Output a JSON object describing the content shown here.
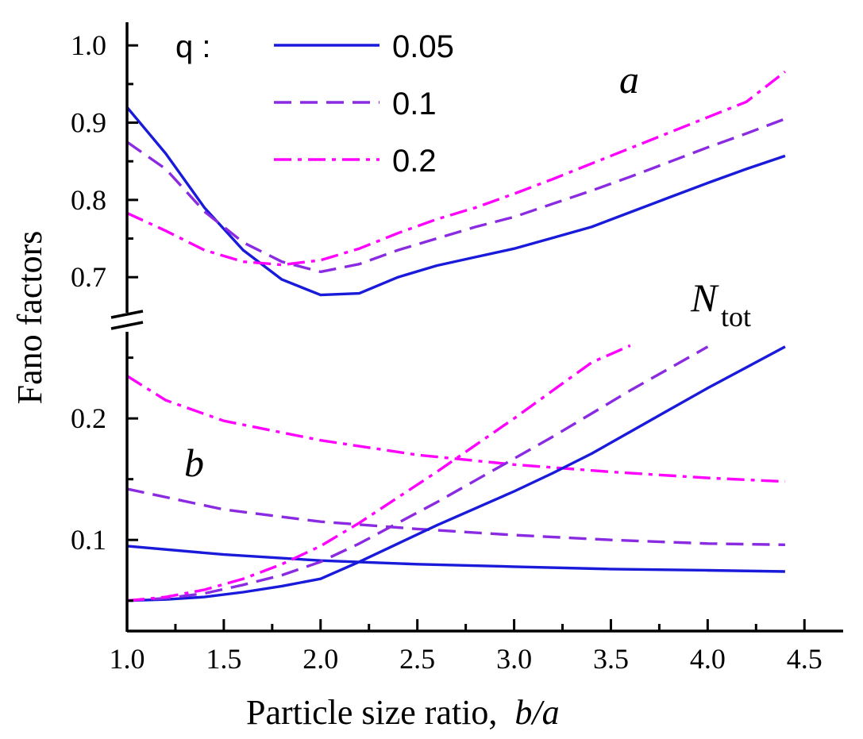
{
  "chart_data": {
    "type": "line",
    "xlabel": "Particle size ratio,",
    "xlabel_italic": "b/a",
    "ylabel": "Fano factors",
    "xlim": [
      1.0,
      4.7
    ],
    "x_ticks": [
      "1.0",
      "1.5",
      "2.0",
      "2.5",
      "3.0",
      "3.5",
      "4.0",
      "4.5"
    ],
    "upper_axis": {
      "ylim": [
        0.655,
        1.03
      ],
      "ticks": [
        "0.7",
        "0.8",
        "0.9",
        "1.0"
      ]
    },
    "lower_axis": {
      "ylim": [
        0.025,
        0.27
      ],
      "ticks": [
        "0.1",
        "0.2"
      ]
    },
    "y_axis_break": true,
    "legend": {
      "position": "top-left",
      "title": "q :",
      "entries": [
        {
          "label": "0.05",
          "style": "solid",
          "color": "#1a1adb"
        },
        {
          "label": "0.1",
          "style": "dashed",
          "color": "#8a2be2"
        },
        {
          "label": "0.2",
          "style": "dashdot",
          "color": "#ff00ff"
        }
      ]
    },
    "annotations": {
      "panel_a": "a",
      "panel_b": "b",
      "ntot_main": "N",
      "ntot_sub": "tot"
    },
    "series": [
      {
        "q": "0.05",
        "panel": "a",
        "style": "solid",
        "color": "#1a1adb",
        "x": [
          1.0,
          1.1,
          1.2,
          1.4,
          1.6,
          1.8,
          2.0,
          2.2,
          2.4,
          2.6,
          2.8,
          3.0,
          3.2,
          3.4,
          3.6,
          3.8,
          4.0,
          4.2,
          4.4
        ],
        "y": [
          0.92,
          0.89,
          0.86,
          0.79,
          0.735,
          0.697,
          0.677,
          0.679,
          0.7,
          0.715,
          0.726,
          0.737,
          0.751,
          0.765,
          0.784,
          0.803,
          0.822,
          0.84,
          0.857
        ]
      },
      {
        "q": "0.1",
        "panel": "a",
        "style": "dashed",
        "color": "#8a2be2",
        "x": [
          1.0,
          1.2,
          1.4,
          1.6,
          1.8,
          2.0,
          2.2,
          2.4,
          2.6,
          2.8,
          3.0,
          3.2,
          3.4,
          3.6,
          3.8,
          4.0,
          4.2,
          4.4
        ],
        "y": [
          0.875,
          0.84,
          0.785,
          0.745,
          0.72,
          0.707,
          0.717,
          0.735,
          0.75,
          0.765,
          0.778,
          0.795,
          0.812,
          0.83,
          0.849,
          0.868,
          0.886,
          0.905
        ]
      },
      {
        "q": "0.2",
        "panel": "a",
        "style": "dashdot",
        "color": "#ff00ff",
        "x": [
          1.0,
          1.2,
          1.4,
          1.6,
          1.8,
          2.0,
          2.2,
          2.4,
          2.6,
          2.8,
          3.0,
          3.2,
          3.4,
          3.6,
          3.8,
          4.0,
          4.2,
          4.4
        ],
        "y": [
          0.783,
          0.76,
          0.735,
          0.72,
          0.716,
          0.722,
          0.737,
          0.757,
          0.775,
          0.79,
          0.808,
          0.827,
          0.847,
          0.867,
          0.887,
          0.907,
          0.927,
          0.966
        ]
      },
      {
        "q": "0.05",
        "panel": "b",
        "style": "solid",
        "color": "#1a1adb",
        "x": [
          1.0,
          1.5,
          2.0,
          2.5,
          3.0,
          3.5,
          4.0,
          4.4
        ],
        "y": [
          0.095,
          0.088,
          0.083,
          0.08,
          0.078,
          0.076,
          0.075,
          0.074
        ]
      },
      {
        "q": "0.1",
        "panel": "b",
        "style": "dashed",
        "color": "#8a2be2",
        "x": [
          1.0,
          1.5,
          2.0,
          2.5,
          3.0,
          3.5,
          4.0,
          4.4
        ],
        "y": [
          0.142,
          0.125,
          0.115,
          0.109,
          0.104,
          0.1,
          0.097,
          0.096
        ]
      },
      {
        "q": "0.2",
        "panel": "b",
        "style": "dashdot",
        "color": "#ff00ff",
        "x": [
          1.0,
          1.2,
          1.5,
          2.0,
          2.5,
          3.0,
          3.5,
          4.0,
          4.4
        ],
        "y": [
          0.235,
          0.215,
          0.198,
          0.182,
          0.17,
          0.162,
          0.156,
          0.151,
          0.148
        ]
      },
      {
        "q": "0.05",
        "panel": "Ntot",
        "style": "solid",
        "color": "#1a1adb",
        "x": [
          1.0,
          1.2,
          1.4,
          1.6,
          1.8,
          2.0,
          2.2,
          2.4,
          2.6,
          2.8,
          3.0,
          3.2,
          3.4,
          3.6,
          3.8,
          4.0,
          4.2,
          4.4
        ],
        "y": [
          0.05,
          0.051,
          0.053,
          0.057,
          0.062,
          0.068,
          0.082,
          0.097,
          0.112,
          0.126,
          0.14,
          0.155,
          0.171,
          0.189,
          0.207,
          0.225,
          0.242,
          0.259
        ]
      },
      {
        "q": "0.1",
        "panel": "Ntot",
        "style": "dashed",
        "color": "#8a2be2",
        "x": [
          1.0,
          1.2,
          1.4,
          1.6,
          1.8,
          2.0,
          2.2,
          2.4,
          2.6,
          2.8,
          3.0,
          3.2,
          3.4,
          3.6,
          3.8,
          4.0
        ],
        "y": [
          0.05,
          0.052,
          0.056,
          0.063,
          0.071,
          0.082,
          0.097,
          0.114,
          0.131,
          0.149,
          0.167,
          0.185,
          0.204,
          0.223,
          0.241,
          0.259
        ]
      },
      {
        "q": "0.2",
        "panel": "Ntot",
        "style": "dashdot",
        "color": "#ff00ff",
        "x": [
          1.0,
          1.2,
          1.4,
          1.6,
          1.8,
          2.0,
          2.2,
          2.4,
          2.6,
          2.8,
          3.0,
          3.2,
          3.4,
          3.6
        ],
        "y": [
          0.05,
          0.053,
          0.059,
          0.068,
          0.08,
          0.095,
          0.114,
          0.135,
          0.156,
          0.178,
          0.2,
          0.223,
          0.246,
          0.26
        ]
      }
    ]
  }
}
